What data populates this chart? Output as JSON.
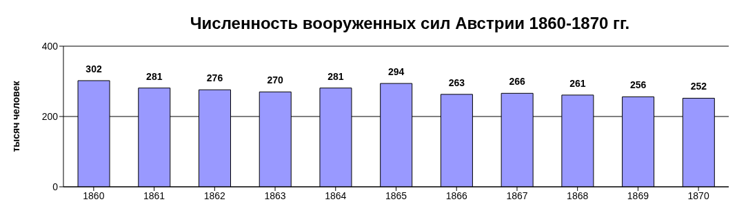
{
  "chart_data": {
    "type": "bar",
    "title": "Численность вооруженных сил Австрии 1860-1870 гг.",
    "ylabel": "тысяч человек",
    "categories": [
      "1860",
      "1861",
      "1862",
      "1863",
      "1864",
      "1865",
      "1866",
      "1867",
      "1868",
      "1869",
      "1870"
    ],
    "values": [
      302,
      281,
      276,
      270,
      281,
      294,
      263,
      266,
      261,
      256,
      252
    ],
    "color": "#9999ff",
    "ylim": [
      0,
      400
    ],
    "yticks": [
      0,
      200,
      400
    ],
    "grid": "y",
    "data_labels": true
  }
}
